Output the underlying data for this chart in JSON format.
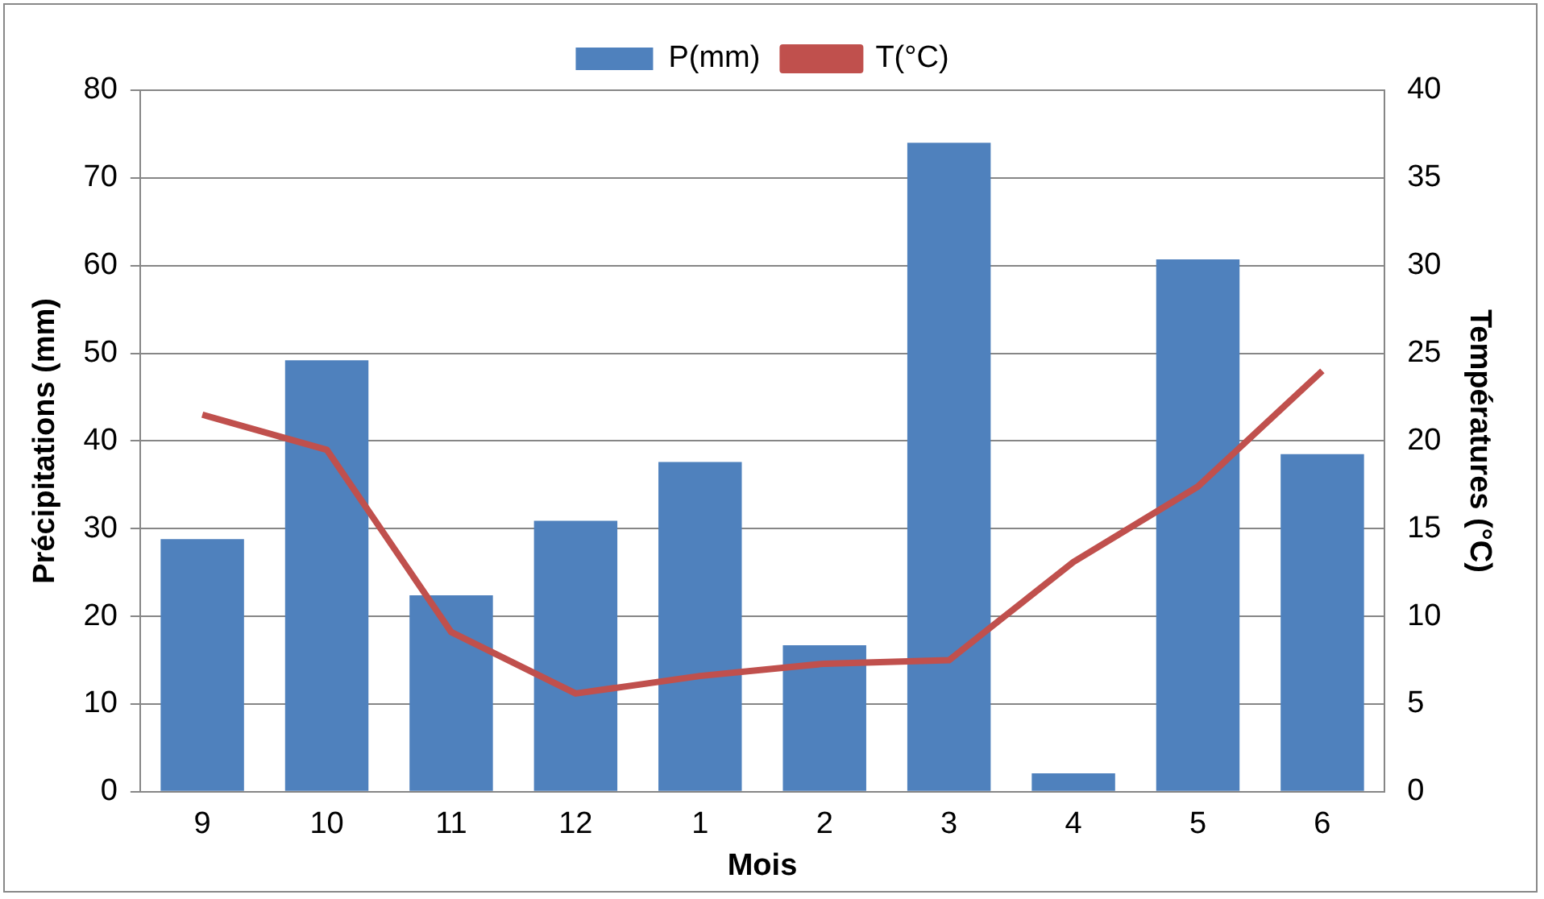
{
  "chart_data": {
    "type": "bar",
    "xlabel": "Mois",
    "ylabel": "Précipitations (mm)",
    "y2label": "Températures (°C)",
    "categories": [
      "9",
      "10",
      "11",
      "12",
      "1",
      "2",
      "3",
      "4",
      "5",
      "6"
    ],
    "series": [
      {
        "name": "P(mm)",
        "color": "#4f81bd",
        "values": [
          28.8,
          49.2,
          22.4,
          30.9,
          37.6,
          16.7,
          74,
          2.1,
          60.7,
          38.5
        ]
      },
      {
        "name": "T(°C)",
        "type": "line",
        "axis": "y2",
        "color": "#c0504d",
        "marker": "none",
        "values": [
          21.5,
          19.5,
          9.1,
          5.6,
          6.6,
          7.3,
          7.5,
          13.1,
          17.4,
          24
        ]
      }
    ],
    "ylim": [
      0,
      80
    ],
    "yticks": [
      0,
      10,
      20,
      30,
      40,
      50,
      60,
      70,
      80
    ],
    "y2lim": [
      0,
      40
    ],
    "y2ticks": [
      0,
      5,
      10,
      15,
      20,
      25,
      30,
      35,
      40
    ],
    "grid": "y",
    "legend": "top"
  }
}
